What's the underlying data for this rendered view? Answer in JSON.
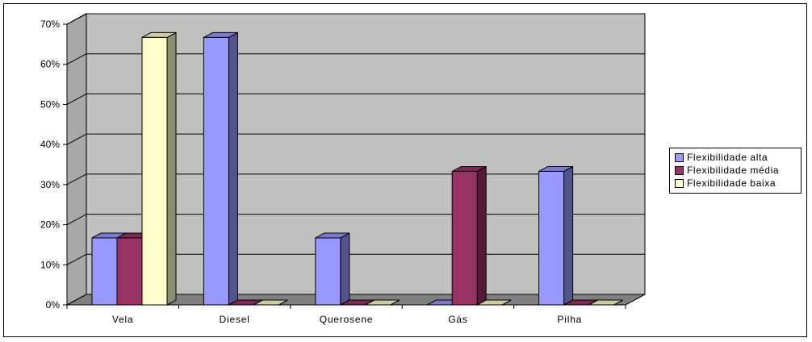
{
  "chart_data": {
    "type": "bar",
    "categories": [
      "Vela",
      "Diesel",
      "Querosene",
      "Gás",
      "Pilha"
    ],
    "series": [
      {
        "name": "Flexibilidade alta",
        "color": "#9999ff",
        "values": [
          16.7,
          66.7,
          16.7,
          0,
          33.3
        ]
      },
      {
        "name": "Flexibilidade média",
        "color": "#993366",
        "values": [
          16.7,
          0,
          0,
          33.3,
          0
        ]
      },
      {
        "name": "Flexibilidade baixa",
        "color": "#ffffcc",
        "values": [
          66.7,
          0,
          0,
          0,
          0
        ]
      }
    ],
    "yticks": [
      "0%",
      "10%",
      "20%",
      "30%",
      "40%",
      "50%",
      "60%",
      "70%"
    ],
    "ylim": [
      0,
      70
    ],
    "grid": true,
    "style": "3d-clustered",
    "wall_color": "#c0c0c0",
    "legend_position": "right"
  }
}
